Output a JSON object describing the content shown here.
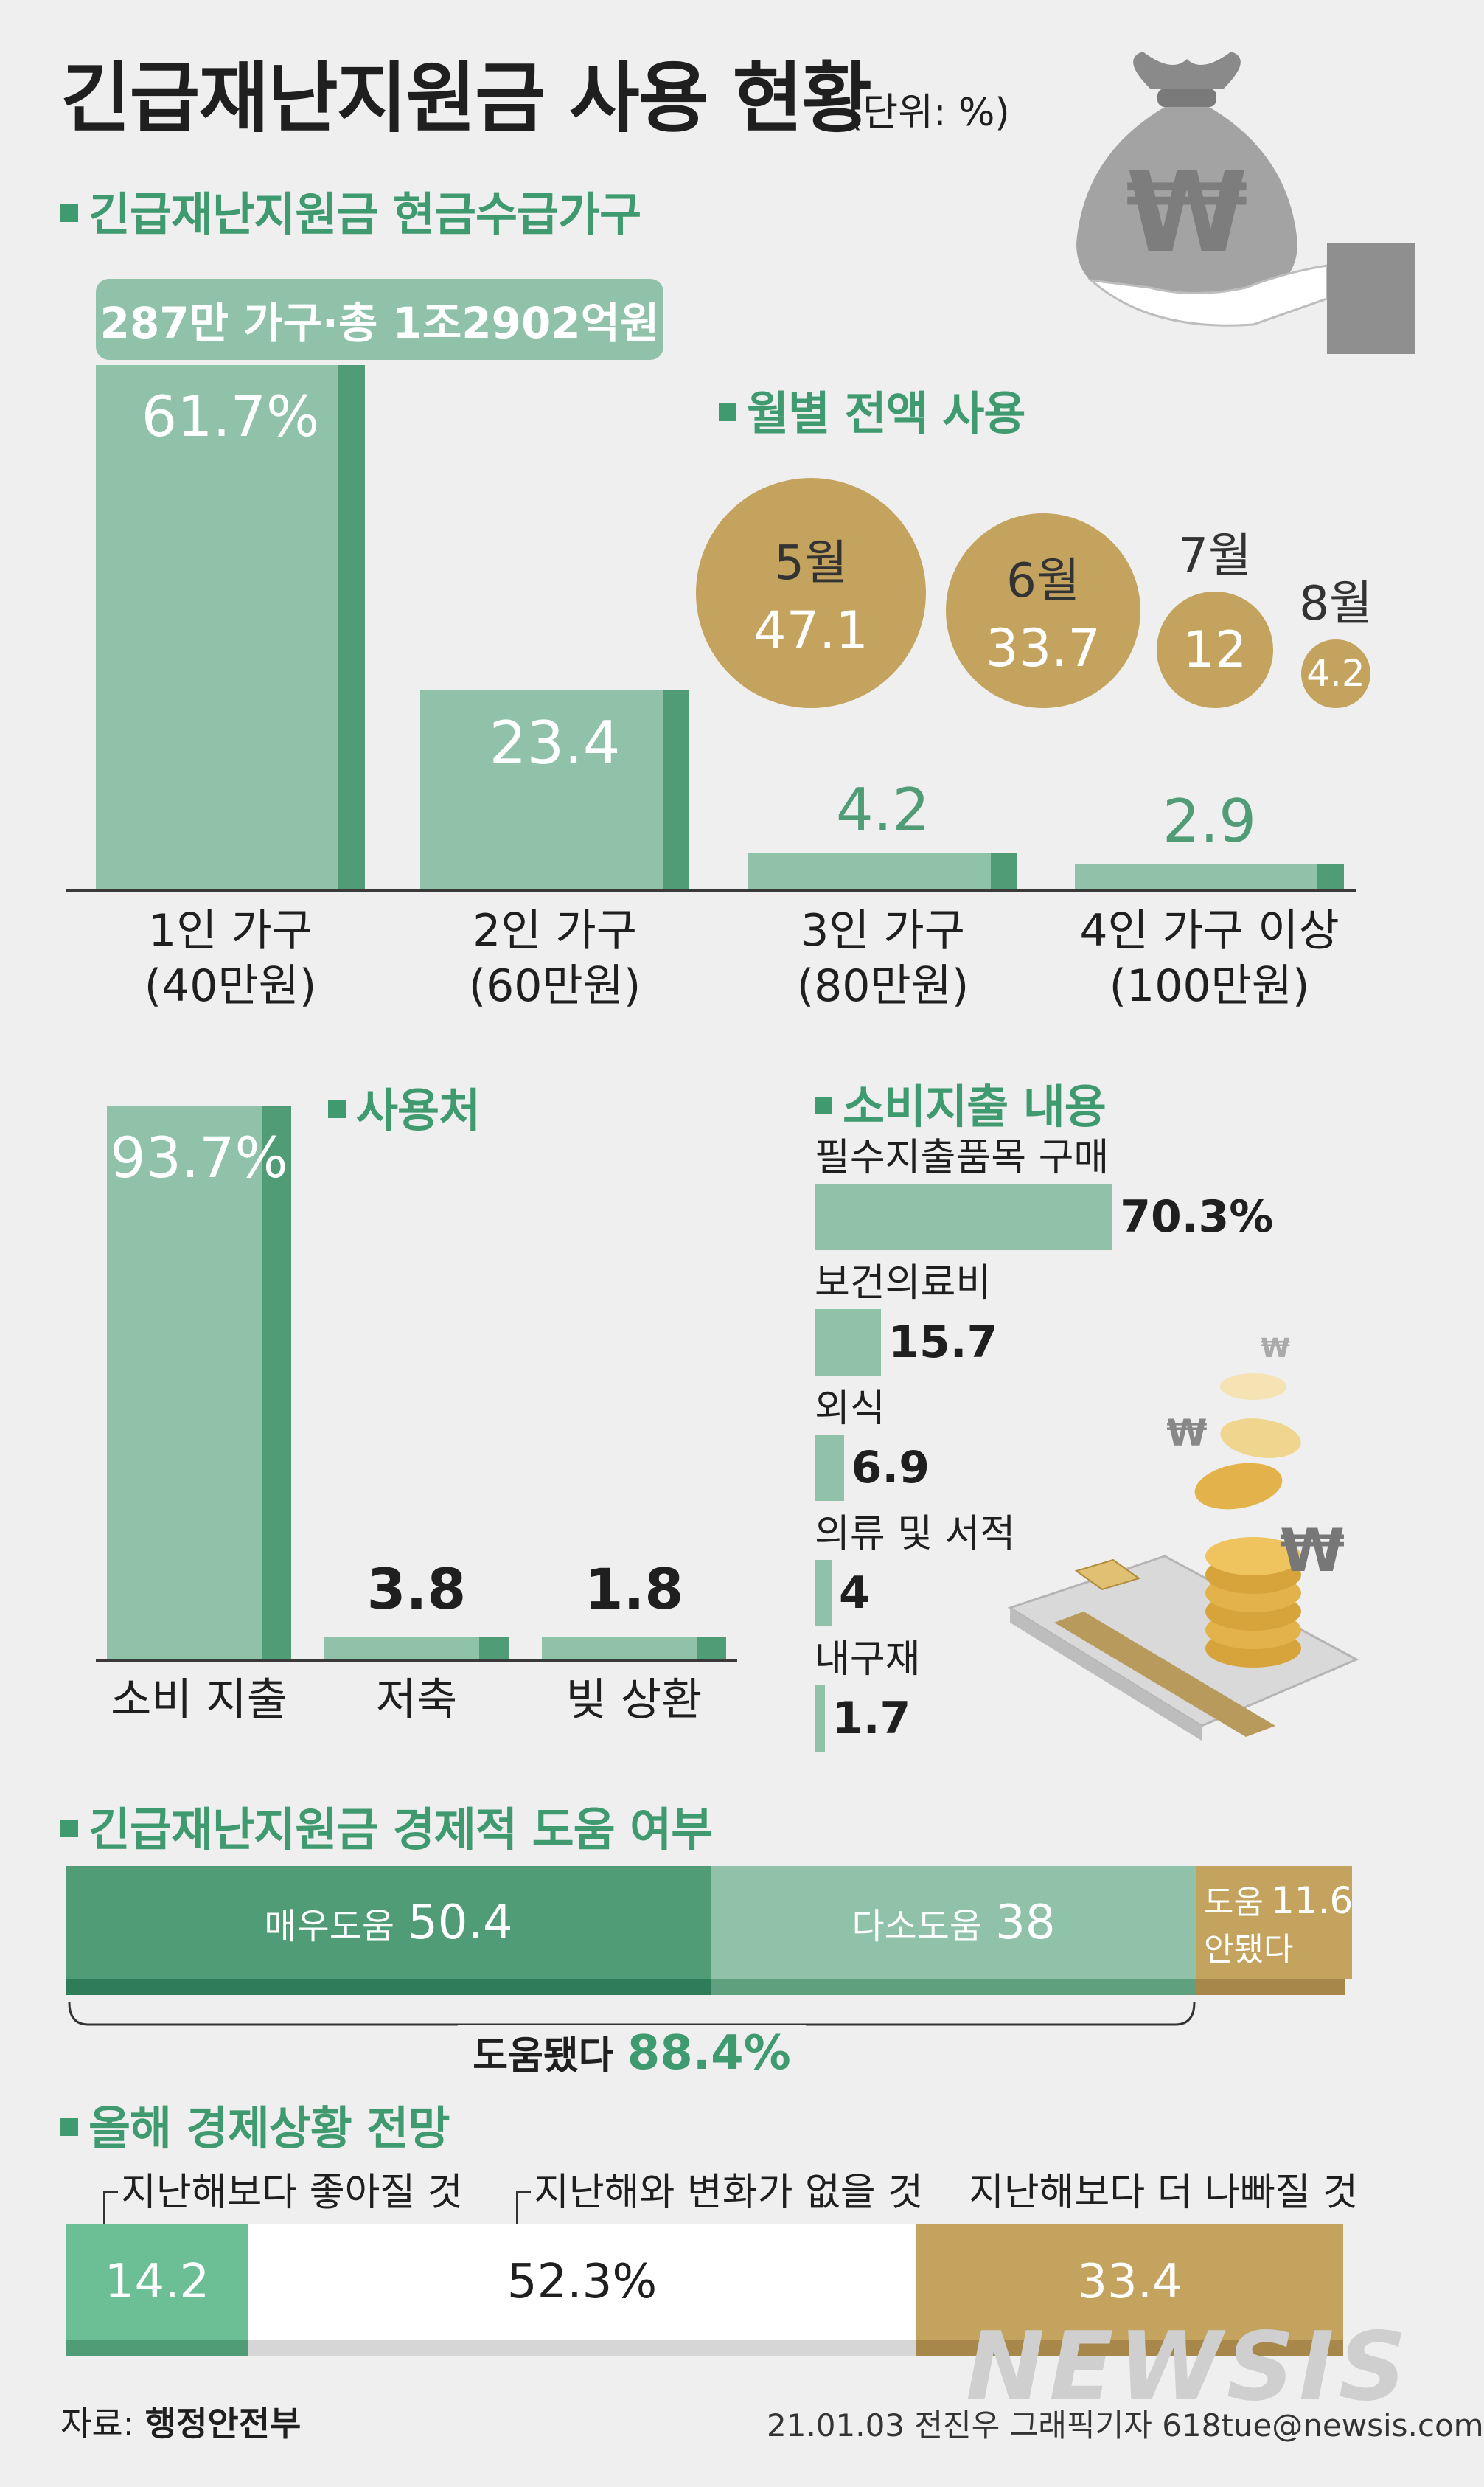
{
  "title": "긴급재난지원금 사용 현황",
  "unit": "(단위: %)",
  "colors": {
    "green_light": "#8fc2a8",
    "green_dark": "#4f9c76",
    "green_deep": "#2f7d58",
    "gold": "#c4a35e",
    "title_green": "#3f9a6f"
  },
  "source_label": "자료:",
  "source": "행정안전부",
  "credit": "21.01.03 전진우 그래픽기자 618tue@newsis.com",
  "watermark": "NEWSIS",
  "chart_data": [
    {
      "type": "bar",
      "heading": "긴급재난지원금 현금수급가구",
      "note": "287만 가구·총 1조2902억원",
      "categories": [
        "1인 가구",
        "2인 가구",
        "3인 가구",
        "4인 가구 이상"
      ],
      "subcategories": [
        "(40만원)",
        "(60만원)",
        "(80만원)",
        "(100만원)"
      ],
      "values": [
        61.7,
        23.4,
        4.2,
        2.9
      ],
      "labels": [
        "61.7%",
        "23.4",
        "4.2",
        "2.9"
      ]
    },
    {
      "type": "bubble",
      "heading": "월별 전액 사용",
      "categories": [
        "5월",
        "6월",
        "7월",
        "8월"
      ],
      "values": [
        47.1,
        33.7,
        12,
        4.2
      ],
      "labels": [
        "47.1",
        "33.7",
        "12",
        "4.2"
      ]
    },
    {
      "type": "bar",
      "heading": "사용처",
      "categories": [
        "소비 지출",
        "저축",
        "빚 상환"
      ],
      "values": [
        93.7,
        3.8,
        1.8
      ],
      "labels": [
        "93.7%",
        "3.8",
        "1.8"
      ]
    },
    {
      "type": "bar",
      "orientation": "horizontal",
      "heading": "소비지출 내용",
      "categories": [
        "필수지출품목 구매",
        "보건의료비",
        "외식",
        "의류 및 서적",
        "내구재"
      ],
      "values": [
        70.3,
        15.7,
        6.9,
        4,
        1.7
      ],
      "labels": [
        "70.3%",
        "15.7",
        "6.9",
        "4",
        "1.7"
      ]
    },
    {
      "type": "stacked-bar",
      "heading": "긴급재난지원금 경제적 도움 여부",
      "categories": [
        "매우도움",
        "다소도움",
        "도움 안됐다"
      ],
      "values": [
        50.4,
        38,
        11.6
      ],
      "brace_label": "도움됐다",
      "brace_value": "88.4%"
    },
    {
      "type": "stacked-bar",
      "heading": "올해 경제상황 전망",
      "categories": [
        "지난해보다 좋아질 것",
        "지난해와 변화가 없을 것",
        "지난해보다 더 나빠질 것"
      ],
      "values": [
        14.2,
        52.3,
        33.4
      ],
      "labels": [
        "14.2",
        "52.3%",
        "33.4"
      ]
    }
  ]
}
